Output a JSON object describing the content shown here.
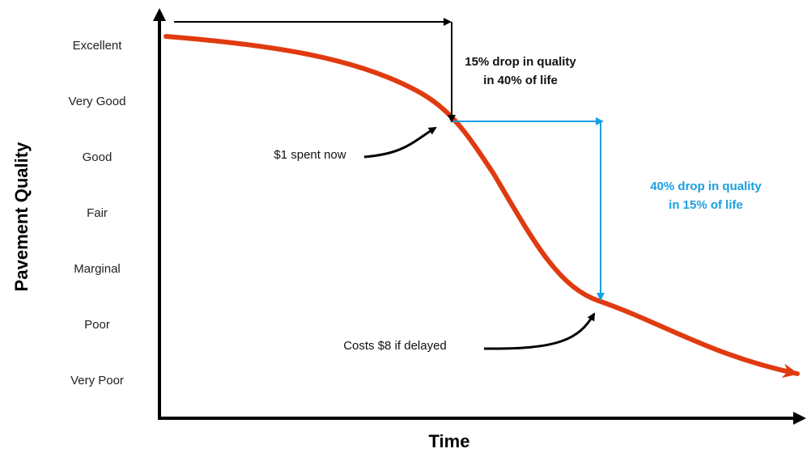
{
  "axes": {
    "y_label": "Pavement Quality",
    "x_label": "Time",
    "y_levels": [
      "Excellent",
      "Very Good",
      "Good",
      "Fair",
      "Marginal",
      "Poor",
      "Very Poor"
    ]
  },
  "annotations": {
    "early_drop": [
      "15% drop in quality",
      "in 40% of  life"
    ],
    "late_drop": [
      "40% drop in quality",
      "in 15% of life"
    ],
    "spent_now": "$1 spent now",
    "delayed": "Costs $8 if delayed"
  }
}
